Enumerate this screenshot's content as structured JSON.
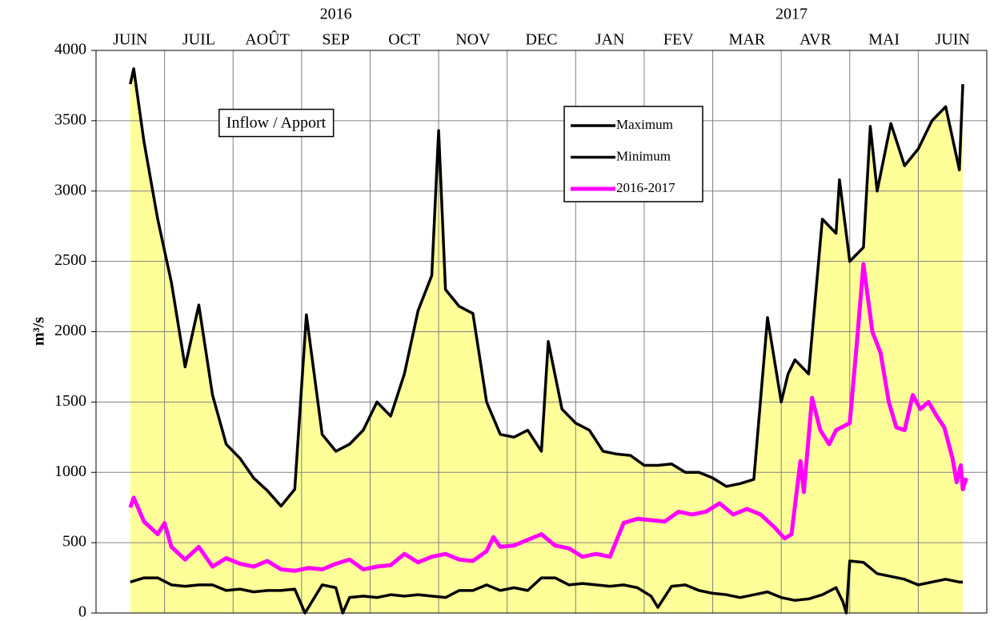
{
  "chart_data": {
    "type": "line",
    "categories": [
      "JUIN",
      "JUIL",
      "AOÛT",
      "SEP",
      "OCT",
      "NOV",
      "DEC",
      "JAN",
      "FEV",
      "MAR",
      "AVR",
      "MAI",
      "JUIN"
    ],
    "x_groups": [
      {
        "label": "2016",
        "x": 3.5
      },
      {
        "label": "2017",
        "x": 10.15
      }
    ],
    "ylabel": "m³/s",
    "annotation": "Inflow / Apport",
    "xlim": [
      0,
      13
    ],
    "xticks": [
      1,
      2,
      3,
      4,
      5,
      6,
      7,
      8,
      9,
      10,
      11,
      12
    ],
    "ylim": [
      0,
      4000
    ],
    "yticks": [
      0,
      500,
      1000,
      1500,
      2000,
      2500,
      3000,
      3500,
      4000
    ],
    "grid": true,
    "legend": "top-center",
    "series": [
      {
        "name": "Maximum",
        "color": "#000000",
        "fill": "#ffff99",
        "x": [
          0.5,
          0.55,
          0.7,
          0.9,
          1.1,
          1.3,
          1.5,
          1.7,
          1.9,
          2.1,
          2.3,
          2.5,
          2.7,
          2.9,
          3.07,
          3.3,
          3.5,
          3.7,
          3.9,
          4.1,
          4.3,
          4.5,
          4.7,
          4.9,
          5.0,
          5.1,
          5.3,
          5.5,
          5.7,
          5.9,
          6.1,
          6.3,
          6.5,
          6.6,
          6.8,
          7.0,
          7.2,
          7.4,
          7.6,
          7.8,
          8.0,
          8.2,
          8.4,
          8.6,
          8.8,
          9.0,
          9.2,
          9.4,
          9.6,
          9.8,
          10.0,
          10.1,
          10.2,
          10.4,
          10.6,
          10.8,
          10.85,
          11.0,
          11.2,
          11.3,
          11.4,
          11.6,
          11.8,
          12.0,
          12.2,
          12.4,
          12.6,
          12.65
        ],
        "values": [
          3760,
          3870,
          3350,
          2800,
          2350,
          1750,
          2190,
          1550,
          1200,
          1100,
          960,
          870,
          760,
          880,
          2120,
          1270,
          1150,
          1200,
          1300,
          1500,
          1400,
          1700,
          2150,
          2400,
          3430,
          2300,
          2180,
          2130,
          1500,
          1270,
          1250,
          1300,
          1150,
          1930,
          1450,
          1350,
          1300,
          1150,
          1130,
          1120,
          1050,
          1050,
          1060,
          1000,
          1000,
          960,
          900,
          920,
          950,
          2100,
          1500,
          1700,
          1800,
          1700,
          2800,
          2700,
          3080,
          2500,
          2600,
          3460,
          3000,
          3480,
          3180,
          3300,
          3500,
          3600,
          3150,
          3760
        ]
      },
      {
        "name": "Minimum",
        "color": "#000000",
        "x": [
          0.5,
          0.7,
          0.9,
          1.1,
          1.3,
          1.5,
          1.7,
          1.9,
          2.1,
          2.3,
          2.5,
          2.7,
          2.9,
          3.05,
          3.3,
          3.5,
          3.6,
          3.7,
          3.9,
          4.1,
          4.3,
          4.5,
          4.7,
          4.9,
          5.1,
          5.3,
          5.5,
          5.7,
          5.9,
          6.1,
          6.3,
          6.5,
          6.7,
          6.9,
          7.1,
          7.3,
          7.5,
          7.7,
          7.9,
          8.1,
          8.2,
          8.4,
          8.6,
          8.8,
          9.0,
          9.2,
          9.4,
          9.6,
          9.8,
          10.0,
          10.2,
          10.4,
          10.6,
          10.8,
          10.9,
          10.95,
          11.0,
          11.2,
          11.4,
          11.6,
          11.8,
          12.0,
          12.2,
          12.4,
          12.6,
          12.65
        ],
        "values": [
          220,
          250,
          250,
          200,
          190,
          200,
          200,
          160,
          170,
          150,
          160,
          160,
          170,
          0,
          200,
          180,
          0,
          110,
          120,
          110,
          130,
          120,
          130,
          120,
          110,
          160,
          160,
          200,
          160,
          180,
          160,
          250,
          250,
          200,
          210,
          200,
          190,
          200,
          180,
          120,
          40,
          190,
          200,
          160,
          140,
          130,
          110,
          130,
          150,
          110,
          90,
          100,
          130,
          180,
          80,
          0,
          370,
          360,
          280,
          260,
          240,
          200,
          220,
          240,
          220,
          220
        ]
      },
      {
        "name": "2016-2017",
        "color": "#ff00ff",
        "x": [
          0.5,
          0.55,
          0.7,
          0.9,
          1.0,
          1.1,
          1.3,
          1.5,
          1.7,
          1.9,
          2.1,
          2.3,
          2.5,
          2.7,
          2.9,
          3.1,
          3.3,
          3.5,
          3.7,
          3.9,
          4.1,
          4.3,
          4.5,
          4.7,
          4.9,
          5.1,
          5.3,
          5.5,
          5.7,
          5.8,
          5.9,
          6.1,
          6.3,
          6.5,
          6.7,
          6.9,
          7.1,
          7.3,
          7.5,
          7.7,
          7.9,
          8.1,
          8.3,
          8.5,
          8.7,
          8.9,
          9.1,
          9.3,
          9.5,
          9.7,
          9.9,
          10.05,
          10.15,
          10.28,
          10.33,
          10.45,
          10.57,
          10.7,
          10.8,
          11.0,
          11.1,
          11.2,
          11.33,
          11.45,
          11.57,
          11.68,
          11.8,
          11.92,
          12.03,
          12.15,
          12.27,
          12.38,
          12.5,
          12.56,
          12.62,
          12.65,
          12.7
        ],
        "values": [
          750,
          820,
          650,
          560,
          640,
          470,
          380,
          470,
          330,
          390,
          350,
          330,
          370,
          310,
          300,
          320,
          310,
          350,
          380,
          310,
          330,
          340,
          420,
          360,
          400,
          420,
          380,
          370,
          440,
          540,
          470,
          480,
          520,
          560,
          480,
          460,
          400,
          420,
          400,
          640,
          670,
          660,
          650,
          720,
          700,
          720,
          780,
          700,
          740,
          700,
          610,
          530,
          560,
          1080,
          860,
          1530,
          1300,
          1200,
          1300,
          1350,
          1900,
          2480,
          2000,
          1850,
          1500,
          1320,
          1300,
          1550,
          1450,
          1500,
          1400,
          1320,
          1100,
          930,
          1050,
          880,
          960
        ]
      }
    ]
  }
}
